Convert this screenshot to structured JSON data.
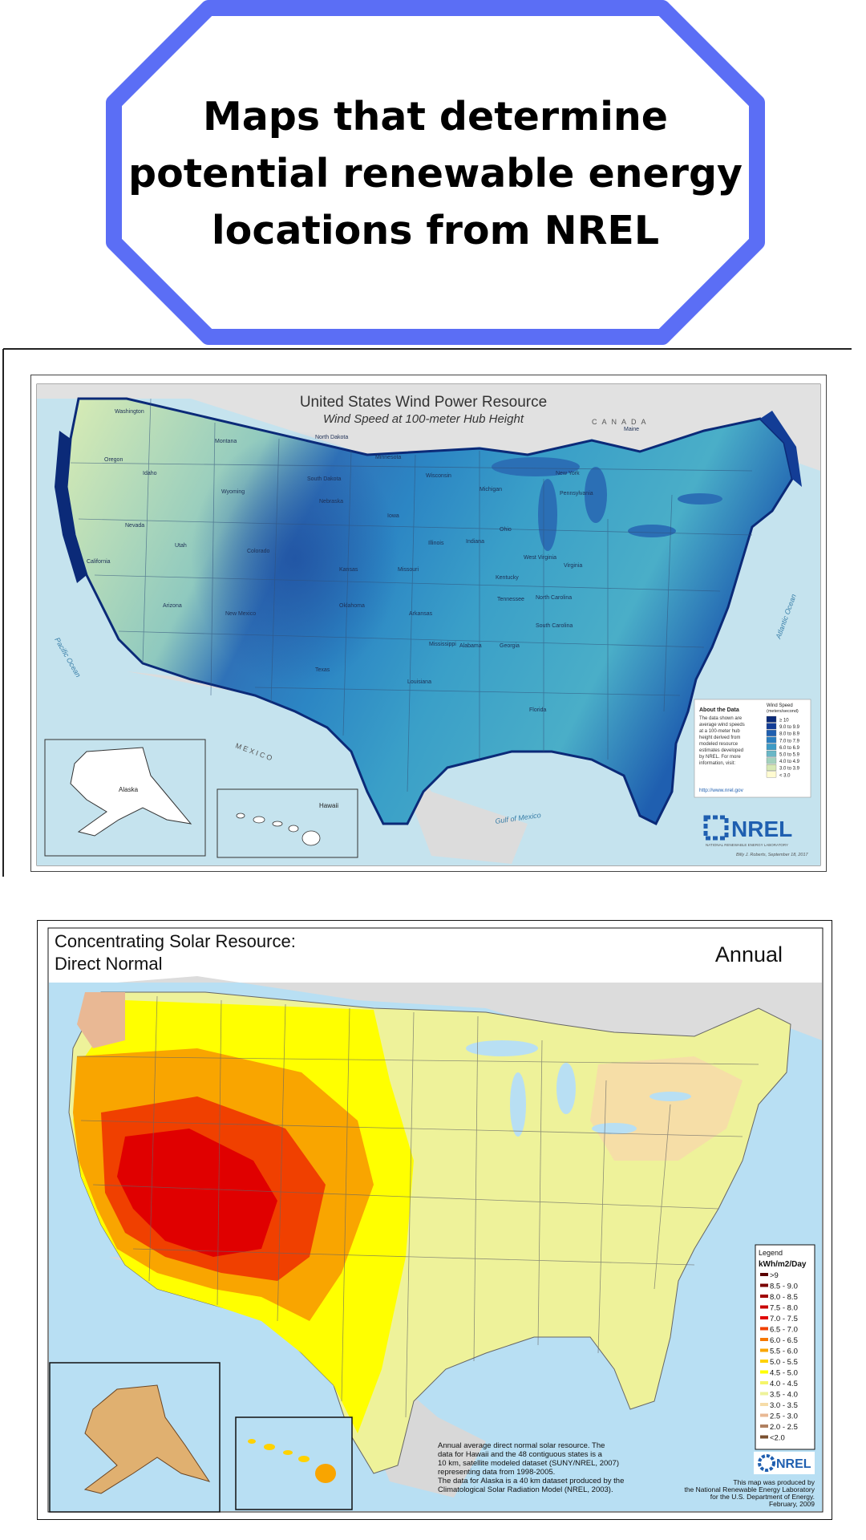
{
  "title": {
    "line1": "Maps that determine",
    "line2": "potential renewable energy",
    "line3": "locations from NREL"
  },
  "colors": {
    "badge_border": "#5b6ef5",
    "wind_low": "#fffbd1",
    "wind_high": "#0b2a78",
    "ocean": "#9fd3e6",
    "solar_red": "#e00000",
    "solar_yellow": "#ffff00"
  },
  "wind_map": {
    "title": "United States Wind Power Resource",
    "subtitle": "Wind Speed at 100-meter Hub Height",
    "country_canada": "C A N A D A",
    "country_mexico": "M E X I C O",
    "ocean_pacific": "Pacific Ocean",
    "ocean_atlantic": "Atlantic Ocean",
    "gulf": "Gulf of Mexico",
    "about_title": "About the Data",
    "about_lines": [
      "The data shown are",
      "average wind speeds",
      "at a 100-meter hub",
      "height derived from",
      "modeled resource",
      "estimates developed",
      "by NREL. For more",
      "information, visit:"
    ],
    "url": "http://www.nrel.gov",
    "legend_title_1": "Wind Speed",
    "legend_title_2": "(meters/second)",
    "legend": [
      {
        "label": "≥ 10",
        "color": "#0b2a78"
      },
      {
        "label": "9.0 to 9.9",
        "color": "#133d96"
      },
      {
        "label": "8.0 to 8.9",
        "color": "#1f5fb0"
      },
      {
        "label": "7.0 to 7.9",
        "color": "#2b7fc0"
      },
      {
        "label": "6.0 to 6.9",
        "color": "#3d9bc6"
      },
      {
        "label": "5.0 to 5.9",
        "color": "#69b7c6"
      },
      {
        "label": "4.0 to 4.9",
        "color": "#a3d1bd"
      },
      {
        "label": "3.0 to 3.9",
        "color": "#d6e8b5"
      },
      {
        "label": "< 3.0",
        "color": "#fffbd1"
      }
    ],
    "nrel_logo": "NREL",
    "nrel_full": "NATIONAL RENEWABLE ENERGY LABORATORY",
    "credit": "Billy J. Roberts, September 18, 2017",
    "inset_alaska": "Alaska",
    "inset_hawaii": "Hawaii",
    "states": [
      {
        "name": "Washington"
      },
      {
        "name": "Oregon"
      },
      {
        "name": "Idaho"
      },
      {
        "name": "Montana"
      },
      {
        "name": "Wyoming"
      },
      {
        "name": "Nevada"
      },
      {
        "name": "California"
      },
      {
        "name": "Utah"
      },
      {
        "name": "Colorado"
      },
      {
        "name": "Arizona"
      },
      {
        "name": "New Mexico"
      },
      {
        "name": "North Dakota"
      },
      {
        "name": "South Dakota"
      },
      {
        "name": "Nebraska"
      },
      {
        "name": "Kansas"
      },
      {
        "name": "Oklahoma"
      },
      {
        "name": "Texas"
      },
      {
        "name": "Minnesota"
      },
      {
        "name": "Iowa"
      },
      {
        "name": "Missouri"
      },
      {
        "name": "Arkansas"
      },
      {
        "name": "Louisiana"
      },
      {
        "name": "Wisconsin"
      },
      {
        "name": "Illinois"
      },
      {
        "name": "Michigan"
      },
      {
        "name": "Indiana"
      },
      {
        "name": "Ohio"
      },
      {
        "name": "Kentucky"
      },
      {
        "name": "Tennessee"
      },
      {
        "name": "Mississippi"
      },
      {
        "name": "Alabama"
      },
      {
        "name": "Georgia"
      },
      {
        "name": "Florida"
      },
      {
        "name": "South Carolina"
      },
      {
        "name": "North Carolina"
      },
      {
        "name": "Virginia"
      },
      {
        "name": "West Virginia"
      },
      {
        "name": "Pennsylvania"
      },
      {
        "name": "New York"
      },
      {
        "name": "Maine"
      }
    ]
  },
  "solar_map": {
    "title_line1": "Concentrating Solar Resource:",
    "title_line2": "Direct Normal",
    "period": "Annual",
    "legend_title": "Legend",
    "legend_unit": "kWh/m2/Day",
    "legend": [
      {
        "label": ">9",
        "color": "#5a0000"
      },
      {
        "label": "8.5 - 9.0",
        "color": "#7a0000"
      },
      {
        "label": "8.0 - 8.5",
        "color": "#a00000"
      },
      {
        "label": "7.5 - 8.0",
        "color": "#c80000"
      },
      {
        "label": "7.0 - 7.5",
        "color": "#e00000"
      },
      {
        "label": "6.5 - 7.0",
        "color": "#f04000"
      },
      {
        "label": "6.0 - 6.5",
        "color": "#f57800"
      },
      {
        "label": "5.5 - 6.0",
        "color": "#f9a500"
      },
      {
        "label": "5.0 - 5.5",
        "color": "#ffd200"
      },
      {
        "label": "4.5 - 5.0",
        "color": "#ffff00"
      },
      {
        "label": "4.0 - 4.5",
        "color": "#f5f56a"
      },
      {
        "label": "3.5 - 4.0",
        "color": "#eef29a"
      },
      {
        "label": "3.0 - 3.5",
        "color": "#f6dca8"
      },
      {
        "label": "2.5 - 3.0",
        "color": "#e9b894"
      },
      {
        "label": "2.0 - 2.5",
        "color": "#b08060"
      },
      {
        "label": "<2.0",
        "color": "#7a5030"
      }
    ],
    "note_lines": [
      "Annual average direct normal solar resource.  The",
      "data for Hawaii and the 48 contiguous states is a",
      "10 km, satellite modeled dataset (SUNY/NREL, 2007)",
      "representing data from 1998-2005.",
      "The data for Alaska is a 40 km dataset produced by the",
      "Climatological Solar Radiation Model (NREL, 2003)."
    ],
    "nrel_logo": "NREL",
    "produced_lines": [
      "This map was produced by",
      "the National Renewable Energy Laboratory",
      "for the U.S. Department of Energy.",
      "February, 2009"
    ]
  }
}
